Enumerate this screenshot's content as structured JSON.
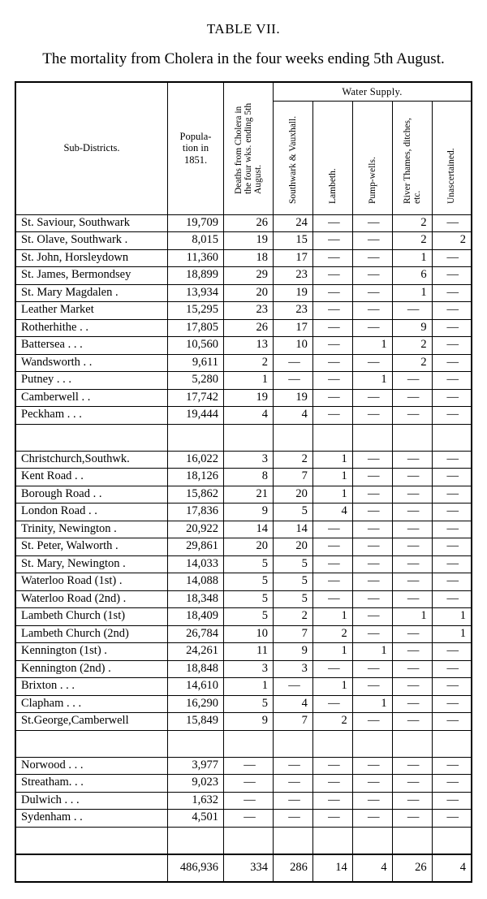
{
  "tableNumber": "TABLE VII.",
  "title": "The mortality from Cholera in the four weeks ending 5th August.",
  "columns": {
    "subDistricts": "Sub-Districts.",
    "population": "Popula-\ntion in\n1851.",
    "deaths": "Deaths from Cholera in the four wks. ending 5th August.",
    "supplyGroup": "Water Supply.",
    "southwark": "Southwark & Vauxhall.",
    "lambeth": "Lambeth.",
    "pumpwells": "Pump-wells.",
    "river": "River Thames, ditches, etc.",
    "unascertained": "Unascertained."
  },
  "colWidths": {
    "name": 182,
    "pop": 64,
    "deaths": 56,
    "supply": 46
  },
  "groups": [
    [
      {
        "name": "St. Saviour, Southwark",
        "pop": "19,709",
        "deaths": "26",
        "sv": "24",
        "la": "—",
        "pw": "—",
        "rt": "2",
        "un": "—"
      },
      {
        "name": "St. Olave, Southwark .",
        "pop": "8,015",
        "deaths": "19",
        "sv": "15",
        "la": "—",
        "pw": "—",
        "rt": "2",
        "un": "2"
      },
      {
        "name": "St. John, Horsleydown",
        "pop": "11,360",
        "deaths": "18",
        "sv": "17",
        "la": "—",
        "pw": "—",
        "rt": "1",
        "un": "—"
      },
      {
        "name": "St. James, Bermondsey",
        "pop": "18,899",
        "deaths": "29",
        "sv": "23",
        "la": "—",
        "pw": "—",
        "rt": "6",
        "un": "—"
      },
      {
        "name": "St. Mary Magdalen    .",
        "pop": "13,934",
        "deaths": "20",
        "sv": "19",
        "la": "—",
        "pw": "—",
        "rt": "1",
        "un": "—"
      },
      {
        "name": "Leather Market",
        "pop": "15,295",
        "deaths": "23",
        "sv": "23",
        "la": "—",
        "pw": "—",
        "rt": "—",
        "un": "—"
      },
      {
        "name": "Rotherhithe     .        .",
        "pop": "17,805",
        "deaths": "26",
        "sv": "17",
        "la": "—",
        "pw": "—",
        "rt": "9",
        "un": "—"
      },
      {
        "name": "Battersea .       .        .",
        "pop": "10,560",
        "deaths": "13",
        "sv": "10",
        "la": "—",
        "pw": "1",
        "rt": "2",
        "un": "—"
      },
      {
        "name": "Wandsworth     .        .",
        "pop": "9,611",
        "deaths": "2",
        "sv": "—",
        "la": "—",
        "pw": "—",
        "rt": "2",
        "un": "—"
      },
      {
        "name": "Putney     .       .        .",
        "pop": "5,280",
        "deaths": "1",
        "sv": "—",
        "la": "—",
        "pw": "1",
        "rt": "—",
        "un": "—"
      },
      {
        "name": "Camberwell      .        .",
        "pop": "17,742",
        "deaths": "19",
        "sv": "19",
        "la": "—",
        "pw": "—",
        "rt": "—",
        "un": "—"
      },
      {
        "name": "Peckham .        .        .",
        "pop": "19,444",
        "deaths": "4",
        "sv": "4",
        "la": "—",
        "pw": "—",
        "rt": "—",
        "un": "—"
      }
    ],
    [
      {
        "name": "Christchurch,Southwk.",
        "pop": "16,022",
        "deaths": "3",
        "sv": "2",
        "la": "1",
        "pw": "—",
        "rt": "—",
        "un": "—"
      },
      {
        "name": "Kent Road        .        .",
        "pop": "18,126",
        "deaths": "8",
        "sv": "7",
        "la": "1",
        "pw": "—",
        "rt": "—",
        "un": "—"
      },
      {
        "name": "Borough Road   .        .",
        "pop": "15,862",
        "deaths": "21",
        "sv": "20",
        "la": "1",
        "pw": "—",
        "rt": "—",
        "un": "—"
      },
      {
        "name": "London Road    .        .",
        "pop": "17,836",
        "deaths": "9",
        "sv": "5",
        "la": "4",
        "pw": "—",
        "rt": "—",
        "un": "—"
      },
      {
        "name": "Trinity, Newington    .",
        "pop": "20,922",
        "deaths": "14",
        "sv": "14",
        "la": "—",
        "pw": "—",
        "rt": "—",
        "un": "—"
      },
      {
        "name": "St. Peter, Walworth   .",
        "pop": "29,861",
        "deaths": "20",
        "sv": "20",
        "la": "—",
        "pw": "—",
        "rt": "—",
        "un": "—"
      },
      {
        "name": "St. Mary, Newington .",
        "pop": "14,033",
        "deaths": "5",
        "sv": "5",
        "la": "—",
        "pw": "—",
        "rt": "—",
        "un": "—"
      },
      {
        "name": "Waterloo Road (1st)  .",
        "pop": "14,088",
        "deaths": "5",
        "sv": "5",
        "la": "—",
        "pw": "—",
        "rt": "—",
        "un": "—"
      },
      {
        "name": "Waterloo Road (2nd) .",
        "pop": "18,348",
        "deaths": "5",
        "sv": "5",
        "la": "—",
        "pw": "—",
        "rt": "—",
        "un": "—"
      },
      {
        "name": "Lambeth Church (1st)",
        "pop": "18,409",
        "deaths": "5",
        "sv": "2",
        "la": "1",
        "pw": "—",
        "rt": "1",
        "un": "1"
      },
      {
        "name": "Lambeth Church (2nd)",
        "pop": "26,784",
        "deaths": "10",
        "sv": "7",
        "la": "2",
        "pw": "—",
        "rt": "—",
        "un": "1"
      },
      {
        "name": "Kennington (1st)       .",
        "pop": "24,261",
        "deaths": "11",
        "sv": "9",
        "la": "1",
        "pw": "1",
        "rt": "—",
        "un": "—"
      },
      {
        "name": "Kennington (2nd)      .",
        "pop": "18,848",
        "deaths": "3",
        "sv": "3",
        "la": "—",
        "pw": "—",
        "rt": "—",
        "un": "—"
      },
      {
        "name": "Brixton     .       .        .",
        "pop": "14,610",
        "deaths": "1",
        "sv": "—",
        "la": "1",
        "pw": "—",
        "rt": "—",
        "un": "—"
      },
      {
        "name": "Clapham  .        .        .",
        "pop": "16,290",
        "deaths": "5",
        "sv": "4",
        "la": "—",
        "pw": "1",
        "rt": "—",
        "un": "—"
      },
      {
        "name": "St.George,Camberwell",
        "pop": "15,849",
        "deaths": "9",
        "sv": "7",
        "la": "2",
        "pw": "—",
        "rt": "—",
        "un": "—"
      }
    ],
    [
      {
        "name": "Norwood .        .        .",
        "pop": "3,977",
        "deaths": "—",
        "sv": "—",
        "la": "—",
        "pw": "—",
        "rt": "—",
        "un": "—"
      },
      {
        "name": "Streatham.       .        .",
        "pop": "9,023",
        "deaths": "—",
        "sv": "—",
        "la": "—",
        "pw": "—",
        "rt": "—",
        "un": "—"
      },
      {
        "name": "Dulwich  .        .        .",
        "pop": "1,632",
        "deaths": "—",
        "sv": "—",
        "la": "—",
        "pw": "—",
        "rt": "—",
        "un": "—"
      },
      {
        "name": "Sydenham         .        .",
        "pop": "4,501",
        "deaths": "—",
        "sv": "—",
        "la": "—",
        "pw": "—",
        "rt": "—",
        "un": "—"
      }
    ]
  ],
  "totals": {
    "name": "",
    "pop": "486,936",
    "deaths": "334",
    "sv": "286",
    "la": "14",
    "pw": "4",
    "rt": "26",
    "un": "4"
  },
  "dash": "—",
  "styling": {
    "fontFamily": "Times New Roman serif",
    "bodyFontSizePt": 14.5,
    "headerFontSizePt": 12.5,
    "titleFontSizePt": 19,
    "tableNumberFontSizePt": 17,
    "verticalHeaderFontSizePt": 11.5,
    "rowHeightPx": 18.5,
    "textColor": "#000000",
    "backgroundColor": "#ffffff",
    "outerBorderWidthPx": 2.5,
    "innerBorderWidthPx": 1,
    "numAlign": "right",
    "nameAlign": "left"
  }
}
